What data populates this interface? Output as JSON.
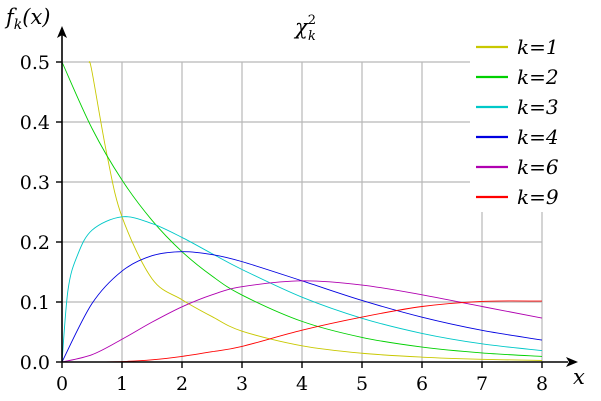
{
  "colors": {
    "background": "#ffffff",
    "grid": "#b8b8b8",
    "axis": "#000000",
    "legend_text": "#000000"
  },
  "chart_data": {
    "type": "line",
    "title_main": "χ",
    "title_sub": "k",
    "title_sup": "2",
    "ylabel_main": "f",
    "ylabel_sub": "k",
    "ylabel_arg": "(x)",
    "xlabel": "x",
    "xlim": [
      0,
      8
    ],
    "ylim": [
      0,
      0.5
    ],
    "xticks": [
      "0",
      "1",
      "2",
      "3",
      "4",
      "5",
      "6",
      "7",
      "8"
    ],
    "yticks": [
      "0.0",
      "0.1",
      "0.2",
      "0.3",
      "0.4",
      "0.5"
    ],
    "grid": true,
    "legend_position": "top-right",
    "series": [
      {
        "name": "k=1",
        "k": 1,
        "color": "#c8c800",
        "x": [
          0.45,
          0.5,
          0.75,
          1,
          1.5,
          2,
          2.5,
          3,
          4,
          5,
          6,
          7,
          8
        ],
        "y": [
          0.5,
          0.4839,
          0.345,
          0.242,
          0.1388,
          0.1038,
          0.0757,
          0.0514,
          0.027,
          0.0146,
          0.0081,
          0.0045,
          0.0026
        ]
      },
      {
        "name": "k=2",
        "k": 2,
        "color": "#00d000",
        "x": [
          0,
          0.5,
          1,
          1.5,
          2,
          2.5,
          3,
          4,
          5,
          6,
          7,
          8
        ],
        "y": [
          0.5,
          0.3894,
          0.3033,
          0.2362,
          0.1839,
          0.1433,
          0.1116,
          0.0677,
          0.041,
          0.0249,
          0.0151,
          0.0092
        ]
      },
      {
        "name": "k=3",
        "k": 3,
        "color": "#00c8c8",
        "x": [
          0,
          0.1,
          0.25,
          0.5,
          1,
          1.5,
          2,
          2.5,
          3,
          4,
          5,
          6,
          7,
          8
        ],
        "y": [
          0,
          0.12,
          0.176,
          0.2197,
          0.242,
          0.2307,
          0.2076,
          0.1806,
          0.1542,
          0.108,
          0.0729,
          0.0477,
          0.0303,
          0.019
        ]
      },
      {
        "name": "k=4",
        "k": 4,
        "color": "#0000e0",
        "x": [
          0,
          0.5,
          1,
          1.5,
          2,
          2.5,
          3,
          4,
          5,
          6,
          7,
          8
        ],
        "y": [
          0,
          0.0974,
          0.1516,
          0.1771,
          0.1839,
          0.1791,
          0.1673,
          0.1353,
          0.1026,
          0.0747,
          0.0528,
          0.0366
        ]
      },
      {
        "name": "k=6",
        "k": 6,
        "color": "#b000b0",
        "x": [
          0,
          0.5,
          1,
          1.5,
          2,
          2.5,
          3,
          4,
          5,
          6,
          7,
          8
        ],
        "y": [
          0,
          0.0122,
          0.0379,
          0.0664,
          0.092,
          0.112,
          0.1255,
          0.1353,
          0.1283,
          0.112,
          0.0925,
          0.0733
        ]
      },
      {
        "name": "k=9",
        "k": 9,
        "color": "#ff0000",
        "x": [
          0,
          0.5,
          1,
          1.5,
          2,
          2.5,
          3,
          4,
          5,
          6,
          7,
          8
        ],
        "y": [
          0,
          0.0001,
          0.0008,
          0.0037,
          0.0093,
          0.0171,
          0.026,
          0.053,
          0.0749,
          0.0925,
          0.101,
          0.1015
        ]
      }
    ]
  }
}
